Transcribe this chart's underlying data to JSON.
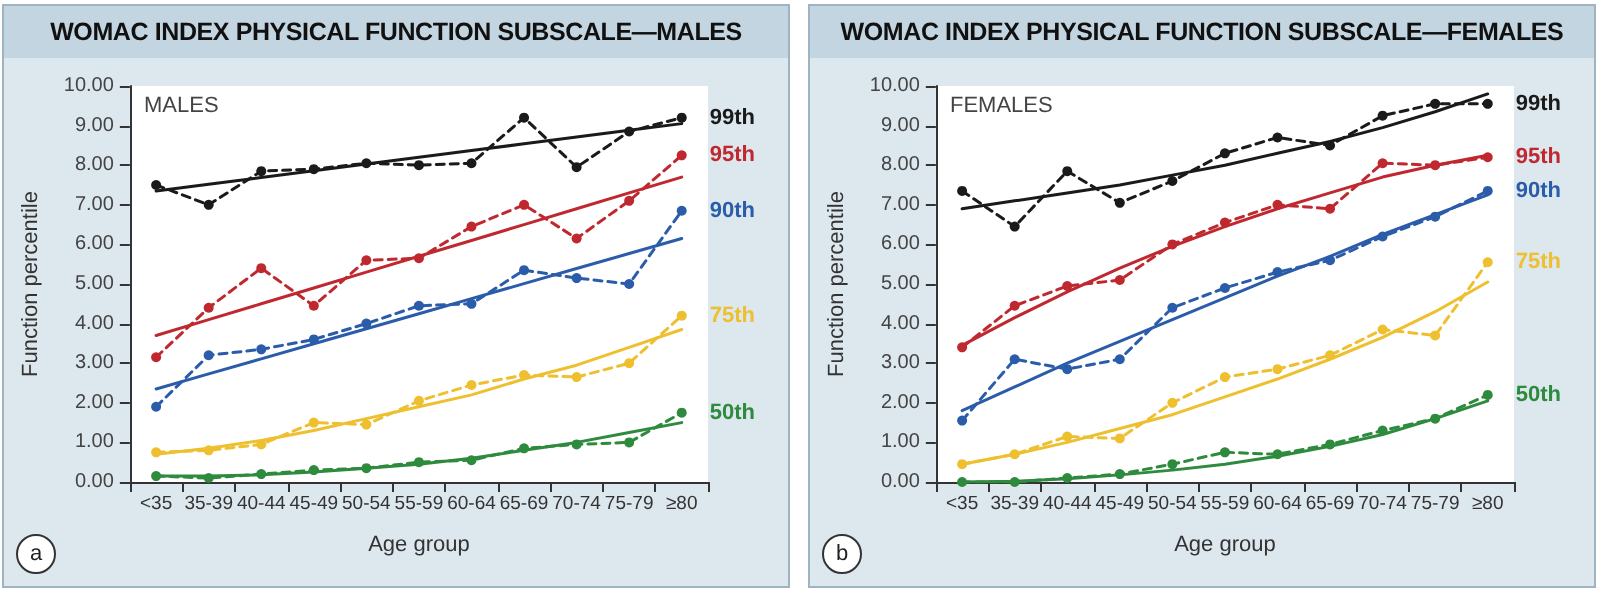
{
  "chart_data": [
    {
      "type": "line",
      "title": "WOMAC INDEX PHYSICAL FUNCTION SUBSCALE—MALES",
      "xlabel": "Age group",
      "ylabel": "Function percentile",
      "annotations": [
        "MALES",
        "a"
      ],
      "categories": [
        "<35",
        "35-39",
        "40-44",
        "45-49",
        "50-54",
        "55-59",
        "60-64",
        "65-69",
        "70-74",
        "75-79",
        "≥80"
      ],
      "ylim": [
        0,
        10
      ],
      "yticks": [
        {
          "value": 0,
          "label": "0.00"
        },
        {
          "value": 1,
          "label": "1.00"
        },
        {
          "value": 2,
          "label": "2.00"
        },
        {
          "value": 3,
          "label": "3.00"
        },
        {
          "value": 4,
          "label": "4.00"
        },
        {
          "value": 5,
          "label": "5.00"
        },
        {
          "value": 6,
          "label": "6.00"
        },
        {
          "value": 7,
          "label": "7.00"
        },
        {
          "value": 8,
          "label": "8.00"
        },
        {
          "value": 9,
          "label": "9.00"
        },
        {
          "value": 10,
          "label": "10.00"
        }
      ],
      "grid": false,
      "legend": false,
      "series": [
        {
          "name": "99th",
          "color": "#1a1a1a",
          "line_style": "dashed",
          "marker": "circle",
          "values": [
            7.5,
            7.0,
            7.85,
            7.9,
            8.05,
            8.0,
            8.05,
            9.2,
            7.95,
            8.85,
            9.2
          ]
        },
        {
          "name": "95th",
          "color": "#c0282f",
          "line_style": "dashed",
          "marker": "circle",
          "values": [
            3.15,
            4.4,
            5.4,
            4.45,
            5.6,
            5.65,
            6.45,
            7.0,
            6.15,
            7.1,
            8.25
          ]
        },
        {
          "name": "90th",
          "color": "#2a5caa",
          "line_style": "dashed",
          "marker": "circle",
          "values": [
            1.9,
            3.2,
            3.35,
            3.6,
            4.0,
            4.45,
            4.5,
            5.35,
            5.15,
            5.0,
            6.85
          ]
        },
        {
          "name": "75th",
          "color": "#eebf2e",
          "line_style": "dashed",
          "marker": "circle",
          "values": [
            0.75,
            0.8,
            0.95,
            1.5,
            1.45,
            2.05,
            2.45,
            2.7,
            2.65,
            3.0,
            4.2
          ]
        },
        {
          "name": "50th",
          "color": "#2e8b3e",
          "line_style": "dashed",
          "marker": "circle",
          "values": [
            0.15,
            0.1,
            0.2,
            0.3,
            0.35,
            0.5,
            0.55,
            0.85,
            0.95,
            1.0,
            1.75
          ]
        },
        {
          "color": "#1a1a1a",
          "line_style": "solid",
          "marker": "none",
          "values": [
            7.35,
            7.52,
            7.69,
            7.86,
            8.03,
            8.2,
            8.37,
            8.54,
            8.71,
            8.88,
            9.05
          ]
        },
        {
          "color": "#c0282f",
          "line_style": "solid",
          "marker": "none",
          "values": [
            3.7,
            4.1,
            4.5,
            4.9,
            5.3,
            5.7,
            6.1,
            6.5,
            6.9,
            7.3,
            7.7
          ]
        },
        {
          "color": "#2a5caa",
          "line_style": "solid",
          "marker": "none",
          "values": [
            2.35,
            2.73,
            3.11,
            3.49,
            3.87,
            4.25,
            4.63,
            5.01,
            5.39,
            5.77,
            6.15
          ]
        },
        {
          "color": "#eebf2e",
          "line_style": "solid",
          "marker": "none",
          "values": [
            0.7,
            0.85,
            1.05,
            1.3,
            1.6,
            1.9,
            2.2,
            2.6,
            2.95,
            3.4,
            3.85
          ]
        },
        {
          "color": "#2e8b3e",
          "line_style": "solid",
          "marker": "none",
          "values": [
            0.15,
            0.15,
            0.18,
            0.25,
            0.35,
            0.45,
            0.6,
            0.8,
            1.0,
            1.25,
            1.5
          ]
        }
      ]
    },
    {
      "type": "line",
      "title": "WOMAC INDEX PHYSICAL FUNCTION SUBSCALE—FEMALES",
      "xlabel": "Age group",
      "ylabel": "Function percentile",
      "annotations": [
        "FEMALES",
        "b"
      ],
      "categories": [
        "<35",
        "35-39",
        "40-44",
        "45-49",
        "50-54",
        "55-59",
        "60-64",
        "65-69",
        "70-74",
        "75-79",
        "≥80"
      ],
      "ylim": [
        0,
        10
      ],
      "yticks": [
        {
          "value": 0,
          "label": "0.00"
        },
        {
          "value": 1,
          "label": "1.00"
        },
        {
          "value": 2,
          "label": "2.00"
        },
        {
          "value": 3,
          "label": "3.00"
        },
        {
          "value": 4,
          "label": "4.00"
        },
        {
          "value": 5,
          "label": "5.00"
        },
        {
          "value": 6,
          "label": "6.00"
        },
        {
          "value": 7,
          "label": "7.00"
        },
        {
          "value": 8,
          "label": "8.00"
        },
        {
          "value": 9,
          "label": "9.00"
        },
        {
          "value": 10,
          "label": "10.00"
        }
      ],
      "grid": false,
      "legend": false,
      "series": [
        {
          "name": "99th",
          "color": "#1a1a1a",
          "line_style": "dashed",
          "marker": "circle",
          "values": [
            7.35,
            6.45,
            7.85,
            7.05,
            7.6,
            8.3,
            8.7,
            8.5,
            9.25,
            9.55,
            9.55
          ]
        },
        {
          "name": "95th",
          "color": "#c0282f",
          "line_style": "dashed",
          "marker": "circle",
          "values": [
            3.4,
            4.45,
            4.95,
            5.1,
            6.0,
            6.55,
            7.0,
            6.9,
            8.05,
            8.0,
            8.2
          ]
        },
        {
          "name": "90th",
          "color": "#2a5caa",
          "line_style": "dashed",
          "marker": "circle",
          "values": [
            1.55,
            3.1,
            2.85,
            3.1,
            4.4,
            4.9,
            5.3,
            5.6,
            6.2,
            6.7,
            7.35
          ]
        },
        {
          "name": "75th",
          "color": "#eebf2e",
          "line_style": "dashed",
          "marker": "circle",
          "values": [
            0.45,
            0.7,
            1.15,
            1.1,
            2.0,
            2.65,
            2.85,
            3.2,
            3.85,
            3.7,
            5.55
          ]
        },
        {
          "name": "50th",
          "color": "#2e8b3e",
          "line_style": "dashed",
          "marker": "circle",
          "values": [
            0.0,
            0.0,
            0.1,
            0.2,
            0.45,
            0.75,
            0.7,
            0.95,
            1.3,
            1.6,
            2.2
          ]
        },
        {
          "color": "#1a1a1a",
          "line_style": "solid",
          "marker": "none",
          "values": [
            6.9,
            7.1,
            7.3,
            7.5,
            7.75,
            8.0,
            8.3,
            8.6,
            8.95,
            9.35,
            9.8
          ]
        },
        {
          "color": "#c0282f",
          "line_style": "solid",
          "marker": "none",
          "values": [
            3.45,
            4.15,
            4.8,
            5.4,
            5.95,
            6.45,
            6.9,
            7.3,
            7.7,
            8.0,
            8.25
          ]
        },
        {
          "color": "#2a5caa",
          "line_style": "solid",
          "marker": "none",
          "values": [
            1.8,
            2.4,
            3.0,
            3.55,
            4.1,
            4.65,
            5.2,
            5.7,
            6.25,
            6.75,
            7.25
          ]
        },
        {
          "color": "#eebf2e",
          "line_style": "solid",
          "marker": "none",
          "values": [
            0.45,
            0.7,
            1.0,
            1.35,
            1.7,
            2.15,
            2.6,
            3.1,
            3.65,
            4.3,
            5.05
          ]
        },
        {
          "color": "#2e8b3e",
          "line_style": "solid",
          "marker": "none",
          "values": [
            0.0,
            0.02,
            0.08,
            0.18,
            0.3,
            0.45,
            0.65,
            0.9,
            1.2,
            1.6,
            2.05
          ]
        }
      ]
    }
  ]
}
